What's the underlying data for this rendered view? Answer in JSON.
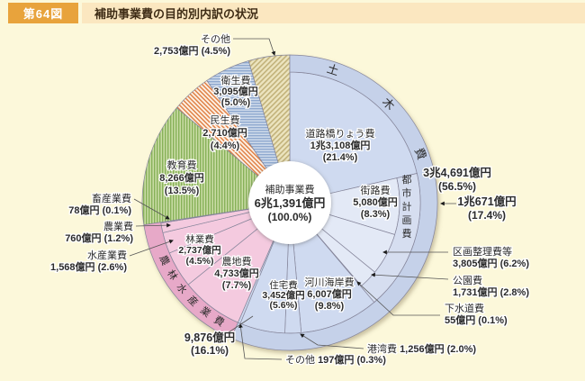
{
  "header": {
    "figure_label": "第64図",
    "title": "補助事業費の目的別内訳の状況"
  },
  "chart_data": {
    "type": "pie",
    "title": "補助事業費の目的別内訳の状況",
    "unit": "億円",
    "legend_position": "none",
    "start_angle_deg": 0,
    "direction": "clockwise",
    "center_label": {
      "name": "補助事業費",
      "value": "6兆1,391億円",
      "pct": 100.0,
      "pct_label": "(100.0%)"
    },
    "groups": [
      {
        "id": "doboku",
        "name": "土木費",
        "value": "3兆4,691億円",
        "pct": 56.5,
        "pct_label": "(56.5%)",
        "color": "#c5d1e9"
      },
      {
        "id": "toshi",
        "name": "都市計画費",
        "value": "1兆671億円",
        "pct": 17.4,
        "pct_label": "(17.4%)",
        "color": "#d6def0",
        "parent": "doboku"
      },
      {
        "id": "nourin",
        "name": "農林水産業費",
        "value": "9,876億円",
        "pct": 16.1,
        "pct_label": "(16.1%)",
        "color": "#e7a9c8"
      }
    ],
    "slices": [
      {
        "id": "douro",
        "name": "道路橋りょう費",
        "value": "1兆3,108億円",
        "pct": 21.4,
        "pct_label": "(21.4%)",
        "group": "doboku",
        "color": "#cfdaf0"
      },
      {
        "id": "gairo",
        "name": "街路費",
        "value": "5,080億円",
        "pct": 8.3,
        "pct_label": "(8.3%)",
        "group": "toshi",
        "color": "#e3e9f6"
      },
      {
        "id": "kukaku",
        "name": "区画整理費等",
        "value": "3,805億円",
        "pct": 6.2,
        "pct_label": "(6.2%)",
        "group": "toshi",
        "color": "#e3e9f6"
      },
      {
        "id": "kouen",
        "name": "公園費",
        "value": "1,731億円",
        "pct": 2.8,
        "pct_label": "(2.8%)",
        "group": "toshi",
        "color": "#e3e9f6"
      },
      {
        "id": "gesui",
        "name": "下水道費",
        "value": "55億円",
        "pct": 0.1,
        "pct_label": "(0.1%)",
        "group": "toshi",
        "color": "#e3e9f6"
      },
      {
        "id": "kasen",
        "name": "河川海岸費",
        "value": "6,007億円",
        "pct": 9.8,
        "pct_label": "(9.8%)",
        "group": "doboku",
        "color": "#cfdaf0"
      },
      {
        "id": "kowan",
        "name": "港湾費",
        "value": "1,256億円",
        "pct": 2.0,
        "pct_label": "(2.0%)",
        "group": "doboku",
        "color": "#cfdaf0"
      },
      {
        "id": "jutaku",
        "name": "住宅費",
        "value": "3,452億円",
        "pct": 5.6,
        "pct_label": "(5.6%)",
        "group": "doboku",
        "color": "#cfdaf0"
      },
      {
        "id": "sonota_doboku",
        "name": "その他",
        "value": "197億円",
        "pct": 0.3,
        "pct_label": "(0.3%)",
        "group": "doboku",
        "color": "#cfdaf0"
      },
      {
        "id": "nouchi",
        "name": "農地費",
        "value": "4,733億円",
        "pct": 7.7,
        "pct_label": "(7.7%)",
        "group": "nourin",
        "color": "#f4cadf"
      },
      {
        "id": "ringyo",
        "name": "林業費",
        "value": "2,737億円",
        "pct": 4.5,
        "pct_label": "(4.5%)",
        "group": "nourin",
        "color": "#f4cadf"
      },
      {
        "id": "suisan",
        "name": "水産業費",
        "value": "1,568億円",
        "pct": 2.6,
        "pct_label": "(2.6%)",
        "group": "nourin",
        "color": "#f4cadf"
      },
      {
        "id": "nougyo",
        "name": "農業費",
        "value": "760億円",
        "pct": 1.2,
        "pct_label": "(1.2%)",
        "group": "nourin",
        "color": "#f4cadf"
      },
      {
        "id": "chikusan",
        "name": "畜産業費",
        "value": "78億円",
        "pct": 0.1,
        "pct_label": "(0.1%)",
        "group": "nourin",
        "color": "#f4cadf"
      },
      {
        "id": "kyoiku",
        "name": "教育費",
        "value": "8,266億円",
        "pct": 13.5,
        "pct_label": "(13.5%)",
        "pattern": "green-vertical"
      },
      {
        "id": "minsei",
        "name": "民生費",
        "value": "2,710億円",
        "pct": 4.4,
        "pct_label": "(4.4%)",
        "pattern": "orange-diagonal"
      },
      {
        "id": "eisei",
        "name": "衛生費",
        "value": "3,095億円",
        "pct": 5.0,
        "pct_label": "(5.0%)",
        "pattern": "blue-horizontal"
      },
      {
        "id": "sonota",
        "name": "その他",
        "value": "2,753億円",
        "pct": 4.5,
        "pct_label": "(4.5%)",
        "pattern": "tan-diagonal"
      }
    ],
    "palette": {
      "background": "#fcf8da",
      "header_box": "#e8a33c",
      "header_band": "#fbe7c0",
      "hole": "#ffffff",
      "stroke": "#85859a",
      "leader": "#555555",
      "pattern_green": {
        "bg": "#c9dca4",
        "line": "#87b158"
      },
      "pattern_orange": {
        "bg": "#fdf2e6",
        "line": "#e08146"
      },
      "pattern_blue": {
        "bg": "#cdd9ea",
        "line": "#8fa9cf"
      },
      "pattern_tan": {
        "bg": "#ece4bf",
        "line": "#c2b27a"
      }
    }
  }
}
